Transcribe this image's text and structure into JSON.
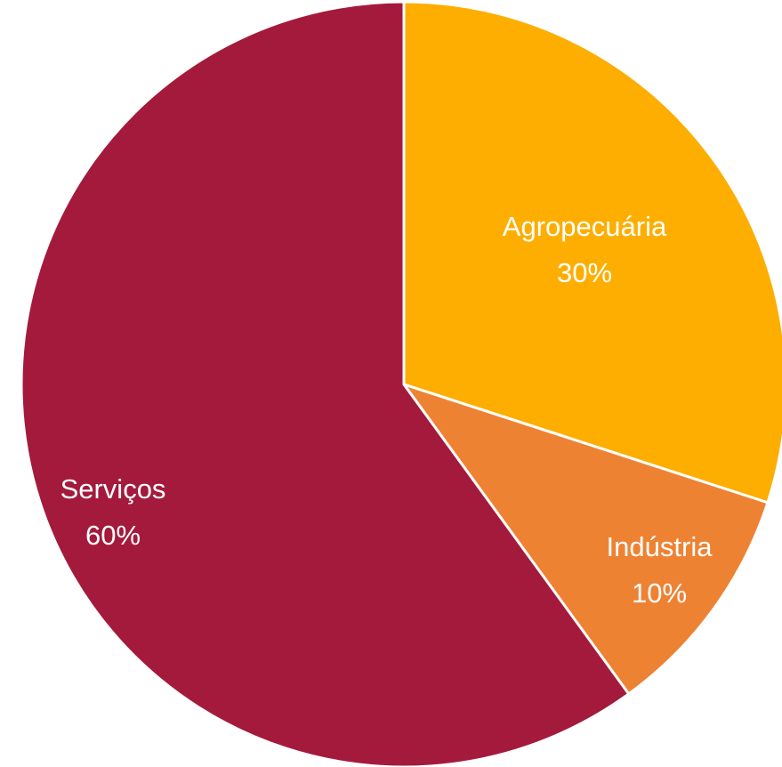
{
  "chart_data": {
    "type": "pie",
    "start_angle_deg": 0,
    "direction": "clockwise",
    "slices": [
      {
        "label": "Agropecuária",
        "value": 30,
        "value_label": "30%",
        "color": "#FDAE00"
      },
      {
        "label": "Indústria",
        "value": 10,
        "value_label": "10%",
        "color": "#EE8233"
      },
      {
        "label": "Serviços",
        "value": 60,
        "value_label": "60%",
        "color": "#A41A3C"
      }
    ]
  }
}
